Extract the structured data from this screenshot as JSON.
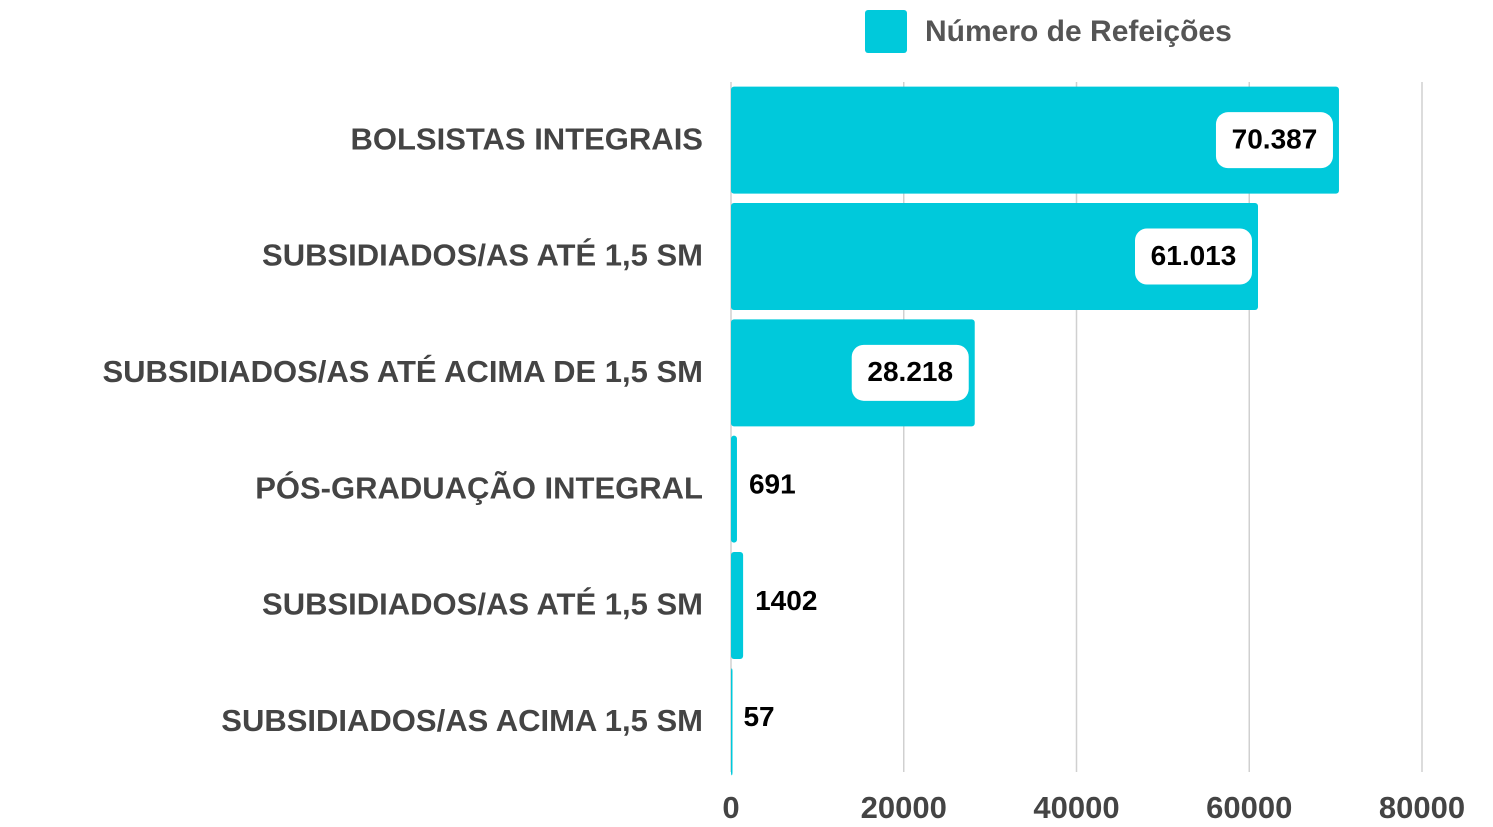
{
  "chart_data": {
    "type": "bar",
    "orientation": "horizontal",
    "categories": [
      "BOLSISTAS INTEGRAIS",
      "SUBSIDIADOS/AS ATÉ 1,5 SM",
      "SUBSIDIADOS/AS ATÉ ACIMA DE 1,5 SM",
      "PÓS-GRADUAÇÃO INTEGRAL",
      "SUBSIDIADOS/AS ATÉ 1,5 SM",
      "SUBSIDIADOS/AS ACIMA 1,5 SM"
    ],
    "series": [
      {
        "name": "Número de Refeições",
        "color": "#00c9db",
        "values": [
          70387,
          61013,
          28218,
          691,
          1402,
          57
        ],
        "value_labels": [
          "70.387",
          "61.013",
          "28.218",
          "691",
          "1402",
          "57"
        ]
      }
    ],
    "xlim": [
      0,
      80000
    ],
    "xticks": [
      0,
      20000,
      40000,
      60000,
      80000
    ],
    "grid": true,
    "legend": "top"
  }
}
